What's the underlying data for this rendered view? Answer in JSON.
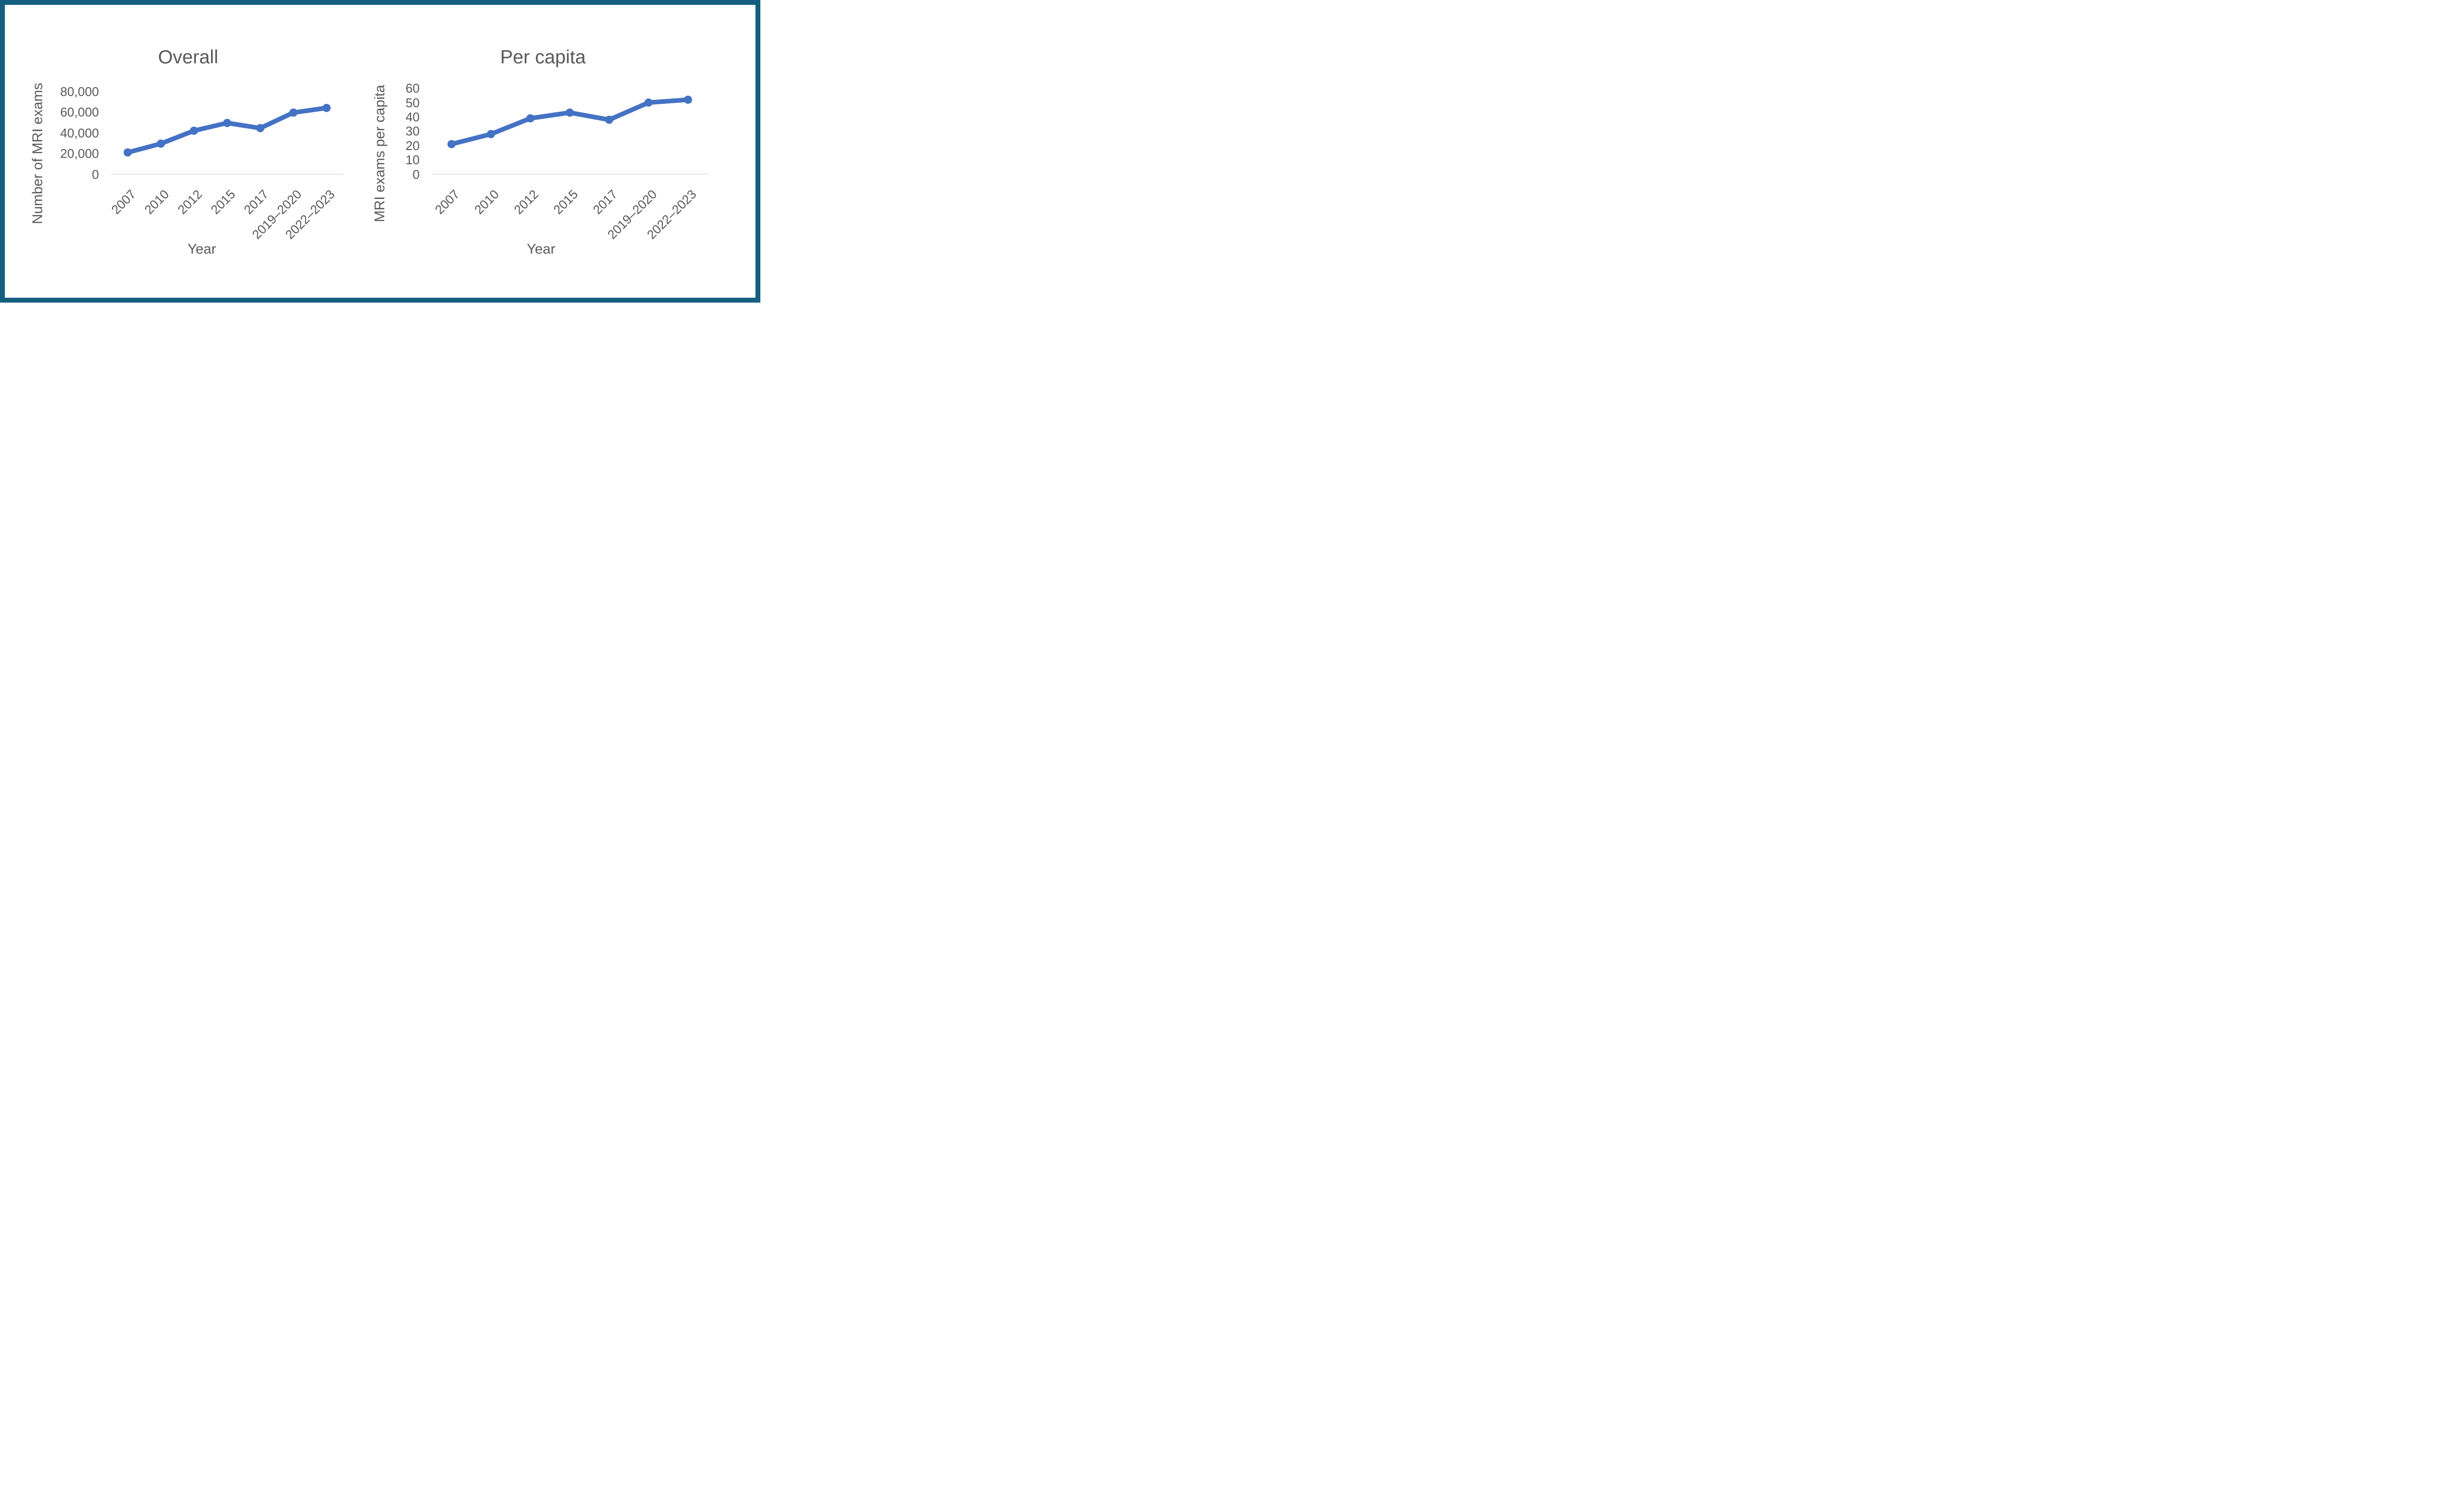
{
  "figure": {
    "frame_color": "#145F80",
    "background_color": "#FFFFFF",
    "text_color": "#595959",
    "axis_line_color": "#D9D9D9",
    "series_color": "#4472C4"
  },
  "chart_data": [
    {
      "type": "line",
      "title": "Overall",
      "xlabel": "Year",
      "ylabel": "Number of MRI exams",
      "categories": [
        "2007",
        "2010",
        "2012",
        "2015",
        "2017",
        "2019–2020",
        "2022–2023"
      ],
      "values": [
        21000,
        29500,
        42000,
        49500,
        44500,
        59500,
        64000
      ],
      "ylim": [
        0,
        80000
      ],
      "ytick_interval": 20000,
      "ytick_labels": [
        "0",
        "20,000",
        "40,000",
        "60,000",
        "80,000"
      ],
      "grid": false,
      "legend": "none",
      "marker": "circle",
      "line_color": "#4472C4"
    },
    {
      "type": "line",
      "title": "Per capita",
      "xlabel": "Year",
      "ylabel": "MRI exams per capita",
      "categories": [
        "2007",
        "2010",
        "2012",
        "2015",
        "2017",
        "2019–2020",
        "2022–2023"
      ],
      "values": [
        21,
        28,
        39,
        43,
        38,
        50,
        52
      ],
      "ylim": [
        0,
        60
      ],
      "ytick_interval": 10,
      "ytick_labels": [
        "0",
        "10",
        "20",
        "30",
        "40",
        "50",
        "60"
      ],
      "grid": false,
      "legend": "none",
      "marker": "circle",
      "line_color": "#4472C4"
    }
  ]
}
